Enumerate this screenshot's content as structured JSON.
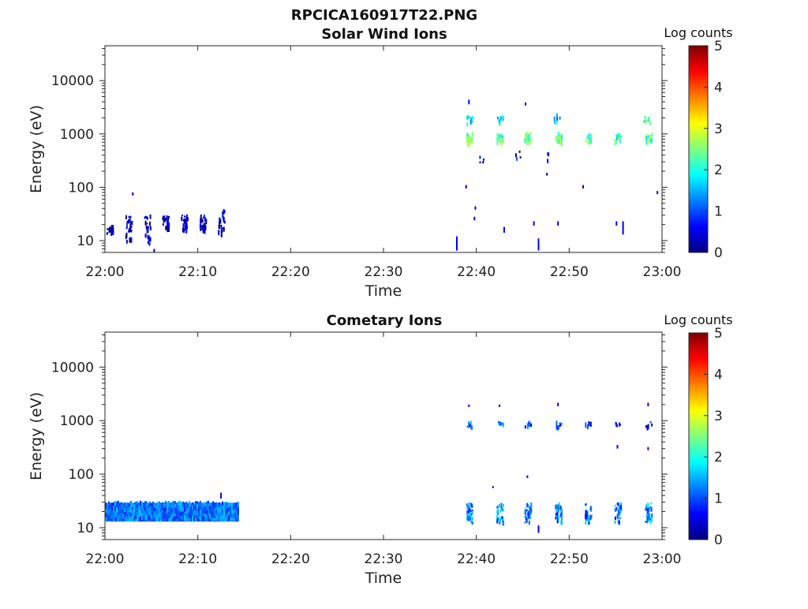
{
  "figure": {
    "title": "RPCICA160917T22.PNG"
  },
  "colors": {
    "colormap": [
      "#00007f",
      "#0000ff",
      "#007fff",
      "#00ffff",
      "#7fff7f",
      "#ffff00",
      "#ff7f00",
      "#ff0000",
      "#7f0000"
    ],
    "axis": "#262626"
  },
  "chart_data": [
    {
      "type": "heatmap",
      "title": "Solar Wind Ions",
      "xlabel": "Time",
      "ylabel": "Energy (eV)",
      "xlim": [
        "22:00",
        "23:00"
      ],
      "x_ticks": [
        "22:00",
        "22:10",
        "22:20",
        "22:30",
        "22:40",
        "22:50",
        "23:00"
      ],
      "y_scale": "log",
      "ylim": [
        6,
        45000
      ],
      "y_ticks": [
        10,
        100,
        1000,
        10000
      ],
      "y_tick_labels": [
        "10",
        "100",
        "1000",
        "10000"
      ],
      "colorbar": {
        "label": "Log counts",
        "range": [
          0,
          5
        ],
        "ticks": [
          "0",
          "1",
          "2",
          "3",
          "4",
          "5"
        ]
      },
      "clusters": [
        {
          "t": "22:00.5",
          "emin": 14,
          "emax": 20,
          "level": 0.3,
          "n": 22
        },
        {
          "t": "22:02.5",
          "emin": 10,
          "emax": 30,
          "level": 0.3,
          "n": 26
        },
        {
          "t": "22:04.5",
          "emin": 9,
          "emax": 32,
          "level": 0.3,
          "n": 28
        },
        {
          "t": "22:06.5",
          "emin": 17,
          "emax": 30,
          "level": 0.3,
          "n": 24
        },
        {
          "t": "22:08.5",
          "emin": 16,
          "emax": 32,
          "level": 0.3,
          "n": 26
        },
        {
          "t": "22:10.5",
          "emin": 15,
          "emax": 32,
          "level": 0.3,
          "n": 26
        },
        {
          "t": "22:12.5",
          "emin": 13,
          "emax": 40,
          "level": 0.3,
          "n": 22
        },
        {
          "t": "22:39.2",
          "emin": 700,
          "emax": 1100,
          "level": 2.4,
          "n": 24
        },
        {
          "t": "22:39.2",
          "emin": 1600,
          "emax": 2300,
          "level": 1.8,
          "n": 10
        },
        {
          "t": "22:42.5",
          "emin": 700,
          "emax": 1100,
          "level": 2.4,
          "n": 24
        },
        {
          "t": "22:42.5",
          "emin": 1700,
          "emax": 2200,
          "level": 1.8,
          "n": 8
        },
        {
          "t": "22:45.5",
          "emin": 700,
          "emax": 1100,
          "level": 2.3,
          "n": 22
        },
        {
          "t": "22:48.8",
          "emin": 700,
          "emax": 1100,
          "level": 2.3,
          "n": 24
        },
        {
          "t": "22:48.6",
          "emin": 1700,
          "emax": 2500,
          "level": 1.6,
          "n": 8
        },
        {
          "t": "22:52.0",
          "emin": 750,
          "emax": 1050,
          "level": 2.2,
          "n": 18
        },
        {
          "t": "22:55.2",
          "emin": 750,
          "emax": 1050,
          "level": 2.0,
          "n": 16
        },
        {
          "t": "22:58.5",
          "emin": 700,
          "emax": 1100,
          "level": 2.2,
          "n": 18
        },
        {
          "t": "22:58.3",
          "emin": 1700,
          "emax": 2200,
          "level": 2.0,
          "n": 8
        },
        {
          "t": "22:40.5",
          "emin": 250,
          "emax": 450,
          "level": 0.5,
          "n": 4
        },
        {
          "t": "22:44.5",
          "emin": 300,
          "emax": 700,
          "level": 0.5,
          "n": 4
        },
        {
          "t": "22:47.8",
          "emin": 150,
          "emax": 600,
          "level": 0.5,
          "n": 4
        }
      ],
      "marks": [
        {
          "t": "22:37.9",
          "emin": 6.5,
          "emax": 12,
          "level": 0.6
        },
        {
          "t": "22:39.8",
          "emin": 24,
          "emax": 28,
          "level": 0.6
        },
        {
          "t": "22:39.9",
          "emin": 38,
          "emax": 44,
          "level": 0.5
        },
        {
          "t": "22:43.0",
          "emin": 14,
          "emax": 18,
          "level": 0.6
        },
        {
          "t": "22:46.2",
          "emin": 19,
          "emax": 23,
          "level": 0.6
        },
        {
          "t": "22:46.7",
          "emin": 6.5,
          "emax": 11,
          "level": 0.6
        },
        {
          "t": "22:48.8",
          "emin": 19,
          "emax": 23,
          "level": 0.6
        },
        {
          "t": "22:55.1",
          "emin": 19,
          "emax": 23,
          "level": 0.6
        },
        {
          "t": "22:55.8",
          "emin": 13,
          "emax": 23,
          "level": 0.6
        },
        {
          "t": "22:39.2",
          "emin": 3600,
          "emax": 4400,
          "level": 0.7
        },
        {
          "t": "22:45.3",
          "emin": 3400,
          "emax": 3900,
          "level": 0.5
        },
        {
          "t": "22:38.9",
          "emin": 95,
          "emax": 110,
          "level": 0.4
        },
        {
          "t": "22:51.5",
          "emin": 95,
          "emax": 110,
          "level": 0.4
        },
        {
          "t": "22:59.5",
          "emin": 75,
          "emax": 85,
          "level": 0.4
        },
        {
          "t": "22:05.3",
          "emin": 6,
          "emax": 7,
          "level": 0.3
        },
        {
          "t": "22:03.0",
          "emin": 70,
          "emax": 80,
          "level": 0.3
        }
      ]
    },
    {
      "type": "heatmap",
      "title": "Cometary Ions",
      "xlabel": "Time",
      "ylabel": "Energy (eV)",
      "xlim": [
        "22:00",
        "23:00"
      ],
      "x_ticks": [
        "22:00",
        "22:10",
        "22:20",
        "22:30",
        "22:40",
        "22:50",
        "23:00"
      ],
      "y_scale": "log",
      "ylim": [
        6,
        45000
      ],
      "y_ticks": [
        10,
        100,
        1000,
        10000
      ],
      "y_tick_labels": [
        "10",
        "100",
        "1000",
        "10000"
      ],
      "colorbar": {
        "label": "Log counts",
        "range": [
          0,
          5
        ],
        "ticks": [
          "0",
          "1",
          "2",
          "3",
          "4",
          "5"
        ]
      },
      "band": {
        "start": "22:00",
        "end": "22:14.3",
        "emin": 13,
        "emax": 32,
        "levels": [
          0.8,
          1.6
        ]
      },
      "clusters": [
        {
          "t": "22:39.2",
          "emin": 13,
          "emax": 30,
          "level": 1.3,
          "n": 34
        },
        {
          "t": "22:42.5",
          "emin": 13,
          "emax": 30,
          "level": 1.3,
          "n": 34
        },
        {
          "t": "22:45.5",
          "emin": 13,
          "emax": 30,
          "level": 1.2,
          "n": 30
        },
        {
          "t": "22:48.8",
          "emin": 13,
          "emax": 30,
          "level": 1.2,
          "n": 32
        },
        {
          "t": "22:52.0",
          "emin": 13,
          "emax": 30,
          "level": 1.2,
          "n": 30
        },
        {
          "t": "22:55.2",
          "emin": 13,
          "emax": 30,
          "level": 1.2,
          "n": 30
        },
        {
          "t": "22:58.5",
          "emin": 13,
          "emax": 30,
          "level": 1.3,
          "n": 32
        },
        {
          "t": "22:39.2",
          "emin": 800,
          "emax": 1000,
          "level": 1.1,
          "n": 8
        },
        {
          "t": "22:42.5",
          "emin": 800,
          "emax": 1000,
          "level": 1.1,
          "n": 8
        },
        {
          "t": "22:45.5",
          "emin": 800,
          "emax": 1000,
          "level": 1.0,
          "n": 8
        },
        {
          "t": "22:48.8",
          "emin": 800,
          "emax": 1000,
          "level": 1.0,
          "n": 8
        },
        {
          "t": "22:52.0",
          "emin": 800,
          "emax": 1000,
          "level": 1.0,
          "n": 6
        },
        {
          "t": "22:55.2",
          "emin": 850,
          "emax": 950,
          "level": 0.6,
          "n": 5
        },
        {
          "t": "22:58.5",
          "emin": 800,
          "emax": 1000,
          "level": 0.6,
          "n": 5
        }
      ],
      "marks": [
        {
          "t": "22:39.2",
          "emin": 1800,
          "emax": 2000,
          "level": 0.6
        },
        {
          "t": "22:42.5",
          "emin": 1800,
          "emax": 2000,
          "level": 0.5
        },
        {
          "t": "22:48.8",
          "emin": 1850,
          "emax": 2150,
          "level": 0.5
        },
        {
          "t": "22:58.5",
          "emin": 1850,
          "emax": 2150,
          "level": 0.5
        },
        {
          "t": "22:55.2",
          "emin": 300,
          "emax": 350,
          "level": 0.5
        },
        {
          "t": "22:58.5",
          "emin": 280,
          "emax": 320,
          "level": 0.5
        },
        {
          "t": "22:45.5",
          "emin": 85,
          "emax": 95,
          "level": 0.5
        },
        {
          "t": "22:41.8",
          "emin": 55,
          "emax": 60,
          "level": 0.5
        },
        {
          "t": "22:46.7",
          "emin": 8,
          "emax": 11,
          "level": 0.6
        },
        {
          "t": "22:12.5",
          "emin": 35,
          "emax": 45,
          "level": 0.4
        }
      ]
    }
  ]
}
